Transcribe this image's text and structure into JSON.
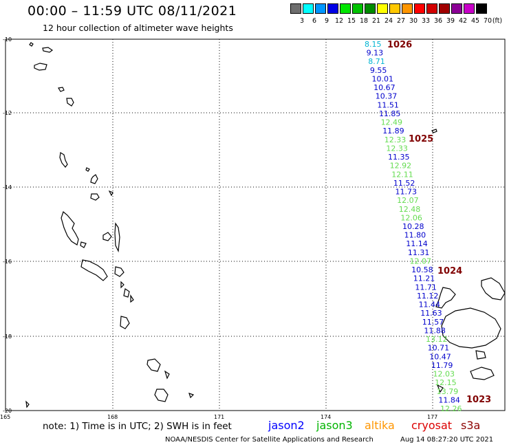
{
  "header": {
    "title": "00:00 – 11:59 UTC 08/11/2021",
    "subtitle": "12 hour collection of altimeter wave heights"
  },
  "legend": {
    "unit": "(ft)",
    "bins": [
      {
        "label": "3",
        "color": "#6e6e6e"
      },
      {
        "label": "6",
        "color": "#00ffff"
      },
      {
        "label": "9",
        "color": "#0096ff"
      },
      {
        "label": "12",
        "color": "#0000e6"
      },
      {
        "label": "15",
        "color": "#00e600"
      },
      {
        "label": "18",
        "color": "#00c300"
      },
      {
        "label": "21",
        "color": "#008c00"
      },
      {
        "label": "24",
        "color": "#ffff00"
      },
      {
        "label": "27",
        "color": "#ffc800"
      },
      {
        "label": "30",
        "color": "#ff9600"
      },
      {
        "label": "33",
        "color": "#ff0000"
      },
      {
        "label": "36",
        "color": "#d20000"
      },
      {
        "label": "39",
        "color": "#a00000"
      },
      {
        "label": "42",
        "color": "#8c0096"
      },
      {
        "label": "45",
        "color": "#c800c8"
      },
      {
        "label": "70",
        "color": "#000000"
      }
    ]
  },
  "axes": {
    "lat_labels": [
      "-10",
      "-12",
      "-14",
      "-16",
      "-18",
      "-20"
    ],
    "lon_labels": [
      "165",
      "168",
      "171",
      "174",
      "177"
    ]
  },
  "colors": {
    "blue": "#0000cc",
    "cyan": "#00b4d2",
    "green": "#64dc50",
    "pressure": "#800000"
  },
  "observations": [
    {
      "value": "8.15",
      "color": "cyan"
    },
    {
      "value": "9.13",
      "color": "blue"
    },
    {
      "value": "8.71",
      "color": "cyan"
    },
    {
      "value": "9.55",
      "color": "blue"
    },
    {
      "value": "10.01",
      "color": "blue"
    },
    {
      "value": "10.67",
      "color": "blue"
    },
    {
      "value": "10.37",
      "color": "blue"
    },
    {
      "value": "11.51",
      "color": "blue"
    },
    {
      "value": "11.85",
      "color": "blue"
    },
    {
      "value": "12.49",
      "color": "green"
    },
    {
      "value": "11.89",
      "color": "blue"
    },
    {
      "value": "12.33",
      "color": "green"
    },
    {
      "value": "12.33",
      "color": "green"
    },
    {
      "value": "11.35",
      "color": "blue"
    },
    {
      "value": "12.92",
      "color": "green"
    },
    {
      "value": "12.11",
      "color": "green"
    },
    {
      "value": "11.52",
      "color": "blue"
    },
    {
      "value": "11.73",
      "color": "blue"
    },
    {
      "value": "12.07",
      "color": "green"
    },
    {
      "value": "12.48",
      "color": "green"
    },
    {
      "value": "12.06",
      "color": "green"
    },
    {
      "value": "10.28",
      "color": "blue"
    },
    {
      "value": "11.80",
      "color": "blue"
    },
    {
      "value": "11.14",
      "color": "blue"
    },
    {
      "value": "11.31",
      "color": "blue"
    },
    {
      "value": "12.07",
      "color": "green"
    },
    {
      "value": "10.58",
      "color": "blue"
    },
    {
      "value": "11.21",
      "color": "blue"
    },
    {
      "value": "11.71",
      "color": "blue"
    },
    {
      "value": "11.12",
      "color": "blue"
    },
    {
      "value": "11.44",
      "color": "blue"
    },
    {
      "value": "11.63",
      "color": "blue"
    },
    {
      "value": "11.57",
      "color": "blue"
    },
    {
      "value": "11.88",
      "color": "blue"
    },
    {
      "value": "13.12",
      "color": "green"
    },
    {
      "value": "10.71",
      "color": "blue"
    },
    {
      "value": "10.47",
      "color": "blue"
    },
    {
      "value": "11.79",
      "color": "blue"
    },
    {
      "value": "12.03",
      "color": "green"
    },
    {
      "value": "12.15",
      "color": "green"
    },
    {
      "value": "13.79",
      "color": "green"
    },
    {
      "value": "11.84",
      "color": "blue"
    },
    {
      "value": "12.26",
      "color": "green"
    }
  ],
  "pressure_labels": [
    "1026",
    "1025",
    "1024",
    "1023"
  ],
  "footer": {
    "note": "note: 1) Time is in UTC; 2) SWH is in feet",
    "satellites": [
      {
        "name": "jason2",
        "color": "#0000ff"
      },
      {
        "name": "jason3",
        "color": "#00b400"
      },
      {
        "name": "altika",
        "color": "#ff9600"
      },
      {
        "name": "cryosat",
        "color": "#dc0000"
      },
      {
        "name": "s3a",
        "color": "#8c0000"
      }
    ],
    "credit": "NOAA/NESDIS Center for Satellite Applications and Research",
    "timestamp": "Aug 14 08:27:20 UTC 2021"
  }
}
